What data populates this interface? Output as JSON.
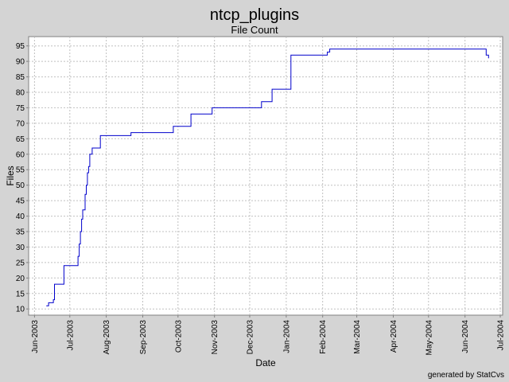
{
  "chart_data": {
    "type": "line",
    "title": "ntcp_plugins",
    "subtitle": "File Count",
    "xlabel": "Date",
    "ylabel": "Files",
    "ylim": [
      8,
      98
    ],
    "xlim": [
      "2003-05-27",
      "2004-07-03"
    ],
    "grid": true,
    "line_color": "#0000cc",
    "y_ticks": [
      10,
      15,
      20,
      25,
      30,
      35,
      40,
      45,
      50,
      55,
      60,
      65,
      70,
      75,
      80,
      85,
      90,
      95
    ],
    "x_ticks": [
      {
        "date": "2003-06-01",
        "label": "Jun-2003"
      },
      {
        "date": "2003-07-01",
        "label": "Jul-2003"
      },
      {
        "date": "2003-08-01",
        "label": "Aug-2003"
      },
      {
        "date": "2003-09-01",
        "label": "Sep-2003"
      },
      {
        "date": "2003-10-01",
        "label": "Oct-2003"
      },
      {
        "date": "2003-11-01",
        "label": "Nov-2003"
      },
      {
        "date": "2003-12-01",
        "label": "Dec-2003"
      },
      {
        "date": "2004-01-01",
        "label": "Jan-2004"
      },
      {
        "date": "2004-02-01",
        "label": "Feb-2004"
      },
      {
        "date": "2004-03-01",
        "label": "Mar-2004"
      },
      {
        "date": "2004-04-01",
        "label": "Apr-2004"
      },
      {
        "date": "2004-05-01",
        "label": "May-2004"
      },
      {
        "date": "2004-06-01",
        "label": "Jun-2004"
      },
      {
        "date": "2004-07-01",
        "label": "Jul-2004"
      }
    ],
    "series": [
      {
        "points": [
          [
            "2003-06-11",
            11
          ],
          [
            "2003-06-13",
            12
          ],
          [
            "2003-06-17",
            13
          ],
          [
            "2003-06-18",
            18
          ],
          [
            "2003-06-26",
            24
          ],
          [
            "2003-07-07",
            24
          ],
          [
            "2003-07-08",
            27
          ],
          [
            "2003-07-09",
            31
          ],
          [
            "2003-07-10",
            35
          ],
          [
            "2003-07-11",
            39
          ],
          [
            "2003-07-12",
            42
          ],
          [
            "2003-07-14",
            47
          ],
          [
            "2003-07-15",
            50
          ],
          [
            "2003-07-16",
            54
          ],
          [
            "2003-07-17",
            56
          ],
          [
            "2003-07-18",
            60
          ],
          [
            "2003-07-20",
            62
          ],
          [
            "2003-07-27",
            66
          ],
          [
            "2003-08-22",
            67
          ],
          [
            "2003-09-27",
            69
          ],
          [
            "2003-10-12",
            73
          ],
          [
            "2003-10-30",
            75
          ],
          [
            "2003-12-11",
            77
          ],
          [
            "2003-12-20",
            81
          ],
          [
            "2004-01-05",
            92
          ],
          [
            "2004-02-04",
            92
          ],
          [
            "2004-02-05",
            93
          ],
          [
            "2004-02-07",
            94
          ],
          [
            "2004-06-18",
            94
          ],
          [
            "2004-06-19",
            92
          ],
          [
            "2004-06-21",
            91
          ]
        ]
      }
    ]
  },
  "footer": "generated by StatCvs"
}
